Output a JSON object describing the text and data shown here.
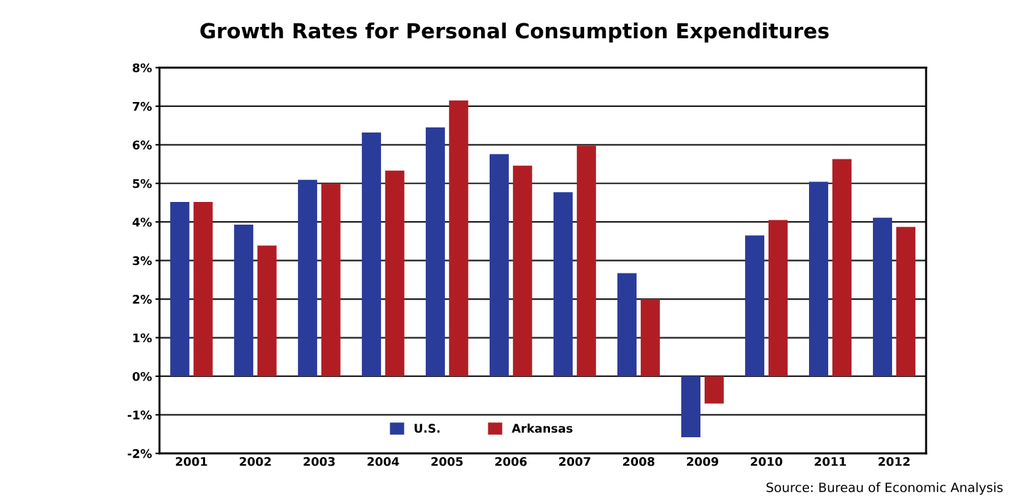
{
  "chart_data": {
    "type": "bar",
    "title": "Growth Rates for Personal Consumption Expenditures",
    "categories": [
      "2001",
      "2002",
      "2003",
      "2004",
      "2005",
      "2006",
      "2007",
      "2008",
      "2009",
      "2010",
      "2011",
      "2012"
    ],
    "series": [
      {
        "name": "U.S.",
        "color": "#2a3c9a",
        "values": [
          4.52,
          3.93,
          5.09,
          6.32,
          6.45,
          5.76,
          4.77,
          2.67,
          -1.58,
          3.65,
          5.04,
          4.11
        ]
      },
      {
        "name": "Arkansas",
        "color": "#b01e24",
        "values": [
          4.52,
          3.39,
          4.99,
          5.33,
          7.15,
          5.46,
          5.98,
          2.0,
          -0.71,
          4.05,
          5.63,
          3.87
        ]
      }
    ],
    "ylim": [
      -2,
      8
    ],
    "yticks": [
      {
        "value": -2,
        "label": "-2%"
      },
      {
        "value": -1,
        "label": "-1%"
      },
      {
        "value": 0,
        "label": "0%"
      },
      {
        "value": 1,
        "label": "1%"
      },
      {
        "value": 2,
        "label": "2%"
      },
      {
        "value": 3,
        "label": "3%"
      },
      {
        "value": 4,
        "label": "4%"
      },
      {
        "value": 5,
        "label": "5%"
      },
      {
        "value": 6,
        "label": "6%"
      },
      {
        "value": 7,
        "label": "7%"
      },
      {
        "value": 8,
        "label": "8%"
      }
    ],
    "grid": "y",
    "legend": "bottom",
    "annotations": [
      "Source: Bureau of Economic Analysis"
    ]
  }
}
